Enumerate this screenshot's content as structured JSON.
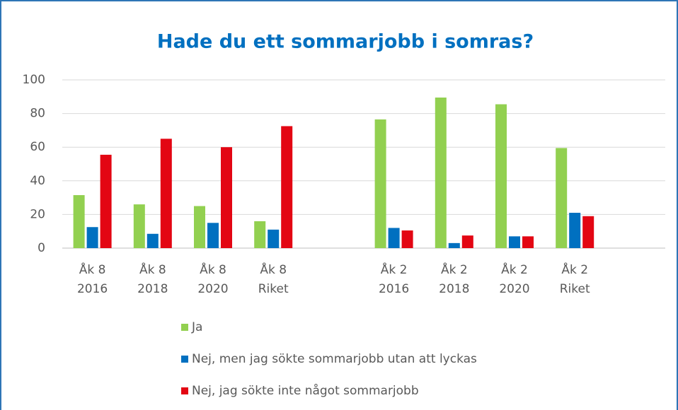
{
  "chart_data": {
    "type": "bar",
    "title": "Hade du ett sommarjobb i somras?",
    "categories": [
      "Åk 8\n2016",
      "Åk 8\n2018",
      "Åk 8\n2020",
      "Åk 8\nRiket",
      null,
      "Åk 2\n2016",
      "Åk 2\n2018",
      "Åk 2\n2020",
      "Åk 2\nRiket",
      null
    ],
    "series": [
      {
        "name": "Ja",
        "color": "#92d050",
        "values": [
          31.5,
          26,
          25,
          16,
          null,
          76.5,
          89.5,
          85.5,
          59.5,
          null
        ]
      },
      {
        "name": "Nej, men jag sökte sommarjobb utan att lyckas",
        "color": "#0070c0",
        "values": [
          12.5,
          8.5,
          15,
          11,
          null,
          12,
          3,
          7,
          21,
          null
        ]
      },
      {
        "name": "Nej, jag sökte inte något sommarjobb",
        "color": "#e30613",
        "values": [
          55.5,
          65,
          60,
          72.5,
          null,
          10.5,
          7.5,
          7,
          19,
          null
        ]
      }
    ],
    "ylim": [
      0,
      100
    ],
    "yticks": [
      0,
      20,
      40,
      60,
      80,
      100
    ],
    "grid": true,
    "legend": "bottom"
  }
}
